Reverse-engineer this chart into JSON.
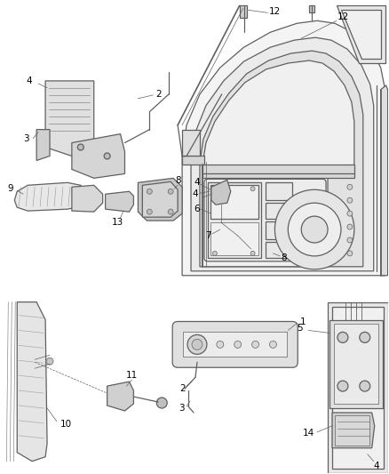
{
  "bg_color": "#ffffff",
  "line_color": "#606060",
  "text_color": "#000000",
  "fig_width": 4.38,
  "fig_height": 5.33,
  "dpi": 100,
  "lw_main": 0.9,
  "lw_thin": 0.5,
  "lw_thick": 1.2,
  "font_size": 7.5
}
